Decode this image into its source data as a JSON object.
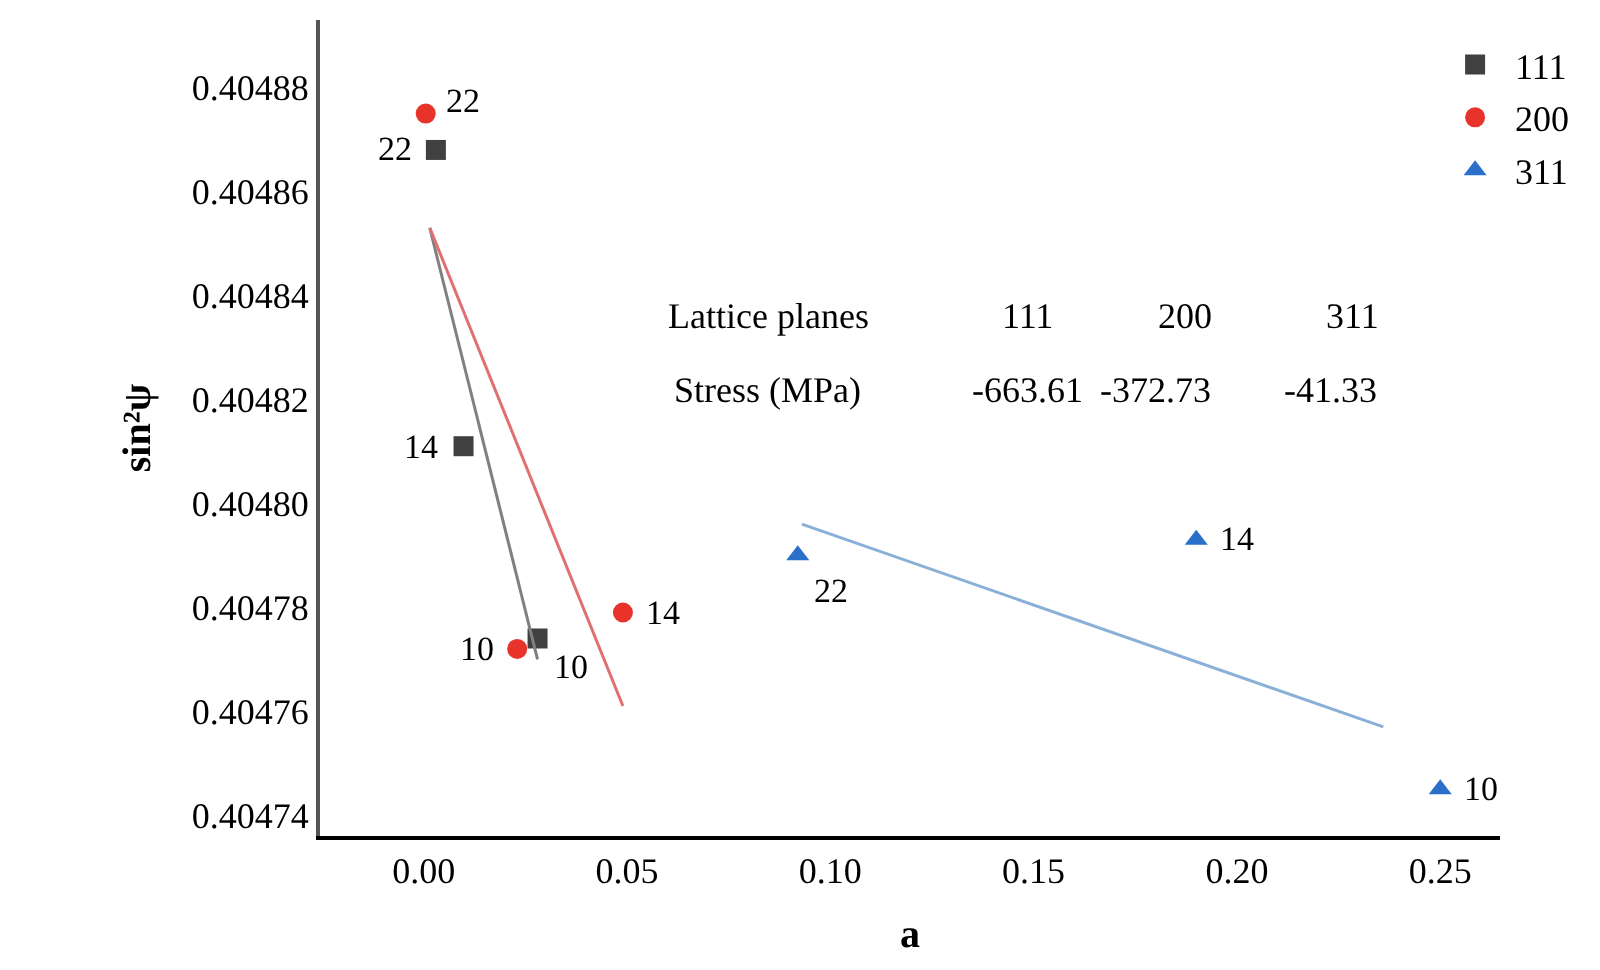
{
  "chart_data": {
    "type": "scatter",
    "xlabel": "a",
    "ylabel": "sin²ψ",
    "xlim": [
      -0.0255,
      0.2647
    ],
    "xticks": [
      {
        "value": 0,
        "label": "0.00"
      },
      0.05,
      {
        "value": 0.1,
        "label": "0.10"
      },
      0.15,
      {
        "value": 0.2,
        "label": "0.20"
      },
      0.25
    ],
    "ylim": [
      0.404736,
      0.404893
    ],
    "yticks": [
      0.40474,
      0.40476,
      0.40478,
      {
        "value": 0.4048,
        "label": "0.40480"
      },
      0.40482,
      0.40484,
      0.40486,
      0.40488
    ],
    "legend": "top right",
    "series": [
      {
        "name": "111",
        "color": "#404040",
        "marker": "square",
        "x": [
          0.003,
          0.0098,
          0.028
        ],
        "values": [
          0.404868,
          0.404811,
          0.404774
        ]
      },
      {
        "name": "200",
        "color": "#e8332a",
        "marker": "circle",
        "x": [
          0.0005,
          0.023,
          0.049
        ],
        "values": [
          0.404875,
          0.404772,
          0.404779
        ]
      },
      {
        "name": "311",
        "color": "#2a6fc9",
        "marker": "triangle",
        "x": [
          0.092,
          0.19,
          0.25
        ],
        "values": [
          0.40479,
          0.404793,
          0.404745
        ]
      },
      {
        "type": "line",
        "color": "#808080",
        "x": [
          0.0015,
          0.028
        ],
        "values": [
          0.404853,
          0.40477
        ]
      },
      {
        "type": "line",
        "color": "#e07070",
        "x": [
          0.0015,
          0.049
        ],
        "values": [
          0.404853,
          0.404761
        ]
      },
      {
        "type": "line",
        "color": "#8ab0d8",
        "x": [
          0.093,
          0.236
        ],
        "values": [
          0.404796,
          0.404757
        ]
      }
    ],
    "annotations": [
      "Lattice planes",
      "111",
      "200",
      "311",
      "Stress (MPa)",
      "-663.61",
      "-372.73",
      "-41.33",
      {
        "text": "22",
        "x": 0.003,
        "y": 0.404868
      },
      {
        "text": "14",
        "x": 0.0098,
        "y": 0.404811
      },
      {
        "text": "10",
        "x": 0.028,
        "y": 0.404774
      },
      {
        "text": "22",
        "x": 0.0005,
        "y": 0.404875
      },
      {
        "text": "10",
        "x": 0.023,
        "y": 0.404772
      },
      {
        "text": "14",
        "x": 0.049,
        "y": 0.404779
      },
      {
        "text": "22",
        "x": 0.092,
        "y": 0.40479
      },
      {
        "text": "14",
        "x": 0.19,
        "y": 0.404793
      },
      {
        "text": "10",
        "x": 0.25,
        "y": 0.404745
      }
    ]
  }
}
